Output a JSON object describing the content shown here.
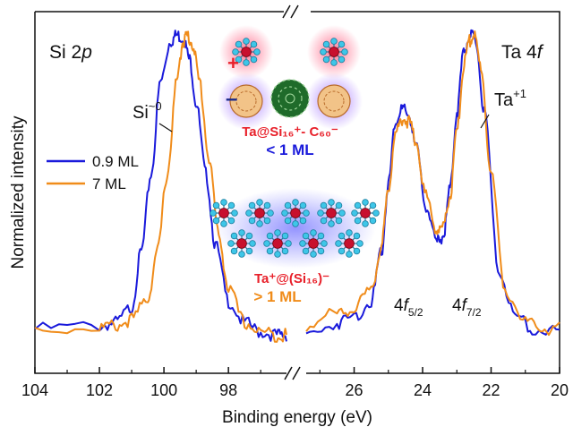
{
  "chart_data": {
    "type": "line",
    "xlabel": "Binding energy (eV)",
    "ylabel": "Normalized intensity",
    "xlim": [
      104,
      20
    ],
    "x_axis_break": {
      "left_panel": [
        104,
        96.2
      ],
      "right_panel": [
        27.4,
        20
      ]
    },
    "ylim": [
      0,
      1.15
    ],
    "grid": false,
    "legend_position": "upper-left",
    "xticks": [
      "104",
      "102",
      "100",
      "98",
      "26",
      "24",
      "22",
      "20"
    ],
    "panel_labels": {
      "left_prefix": "Si 2",
      "left_italic": "p",
      "right_prefix": "Ta 4",
      "right_italic": "f"
    },
    "annotations": {
      "si_peak": {
        "base": "Si",
        "sup": "~0"
      },
      "ta_peak": {
        "base": "Ta",
        "sup": "+1"
      },
      "f52": {
        "base": "4",
        "italic": "f",
        "sub": "5/2"
      },
      "f72": {
        "base": "4",
        "italic": "f",
        "sub": "7/2"
      }
    },
    "inset_labels": {
      "upper_line": "Ta@Si₁₆⁺- C₆₀⁻",
      "upper_coverage": "< 1 ML",
      "lower_line": "Ta⁺@(Si₁₆)⁻",
      "lower_coverage": "> 1 ML",
      "plus_sign": "+",
      "minus_sign": "–"
    },
    "series": [
      {
        "name": "0.9 ML",
        "color": "#1a1adb",
        "si_2p": [
          [
            104,
            0.05
          ],
          [
            102,
            0.06
          ],
          [
            101.5,
            0.07
          ],
          [
            101,
            0.12
          ],
          [
            100.7,
            0.3
          ],
          [
            100.4,
            0.55
          ],
          [
            100.1,
            0.85
          ],
          [
            99.8,
            0.98
          ],
          [
            99.6,
            1.0
          ],
          [
            99.4,
            0.99
          ],
          [
            99.2,
            0.92
          ],
          [
            99.0,
            0.78
          ],
          [
            98.7,
            0.55
          ],
          [
            98.4,
            0.32
          ],
          [
            98.0,
            0.14
          ],
          [
            97.5,
            0.07
          ],
          [
            97.0,
            0.04
          ],
          [
            96.5,
            0.03
          ],
          [
            96.2,
            0.03
          ]
        ],
        "ta_4f": [
          [
            27.4,
            0.03
          ],
          [
            26.5,
            0.07
          ],
          [
            26,
            0.09
          ],
          [
            25.5,
            0.14
          ],
          [
            25.2,
            0.3
          ],
          [
            25.0,
            0.52
          ],
          [
            24.8,
            0.72
          ],
          [
            24.6,
            0.76
          ],
          [
            24.4,
            0.74
          ],
          [
            24.2,
            0.64
          ],
          [
            23.9,
            0.45
          ],
          [
            23.6,
            0.33
          ],
          [
            23.4,
            0.35
          ],
          [
            23.2,
            0.5
          ],
          [
            23.0,
            0.75
          ],
          [
            22.8,
            0.95
          ],
          [
            22.6,
            1.0
          ],
          [
            22.45,
            0.98
          ],
          [
            22.2,
            0.75
          ],
          [
            21.8,
            0.25
          ],
          [
            21.3,
            0.09
          ],
          [
            20.8,
            0.05
          ],
          [
            20,
            0.04
          ]
        ]
      },
      {
        "name": "7 ML",
        "color": "#f08c1a",
        "si_2p": [
          [
            104,
            0.05
          ],
          [
            102,
            0.055
          ],
          [
            101.5,
            0.06
          ],
          [
            101,
            0.08
          ],
          [
            100.5,
            0.15
          ],
          [
            100.2,
            0.3
          ],
          [
            99.9,
            0.55
          ],
          [
            99.6,
            0.85
          ],
          [
            99.4,
            0.98
          ],
          [
            99.3,
            1.0
          ],
          [
            99.1,
            0.97
          ],
          [
            98.9,
            0.85
          ],
          [
            98.6,
            0.6
          ],
          [
            98.3,
            0.35
          ],
          [
            98.0,
            0.18
          ],
          [
            97.5,
            0.07
          ],
          [
            97.0,
            0.04
          ],
          [
            96.5,
            0.03
          ],
          [
            96.2,
            0.03
          ]
        ],
        "ta_4f": [
          [
            27.4,
            0.06
          ],
          [
            26.5,
            0.1
          ],
          [
            26,
            0.12
          ],
          [
            25.5,
            0.17
          ],
          [
            25.2,
            0.32
          ],
          [
            25.0,
            0.5
          ],
          [
            24.8,
            0.68
          ],
          [
            24.6,
            0.73
          ],
          [
            24.4,
            0.72
          ],
          [
            24.2,
            0.66
          ],
          [
            23.9,
            0.48
          ],
          [
            23.6,
            0.37
          ],
          [
            23.4,
            0.38
          ],
          [
            23.2,
            0.48
          ],
          [
            23.0,
            0.68
          ],
          [
            22.8,
            0.9
          ],
          [
            22.65,
            0.98
          ],
          [
            22.5,
            1.0
          ],
          [
            22.3,
            0.9
          ],
          [
            22.0,
            0.55
          ],
          [
            21.6,
            0.18
          ],
          [
            21.0,
            0.07
          ],
          [
            20.5,
            0.05
          ],
          [
            20,
            0.05
          ]
        ]
      }
    ]
  }
}
